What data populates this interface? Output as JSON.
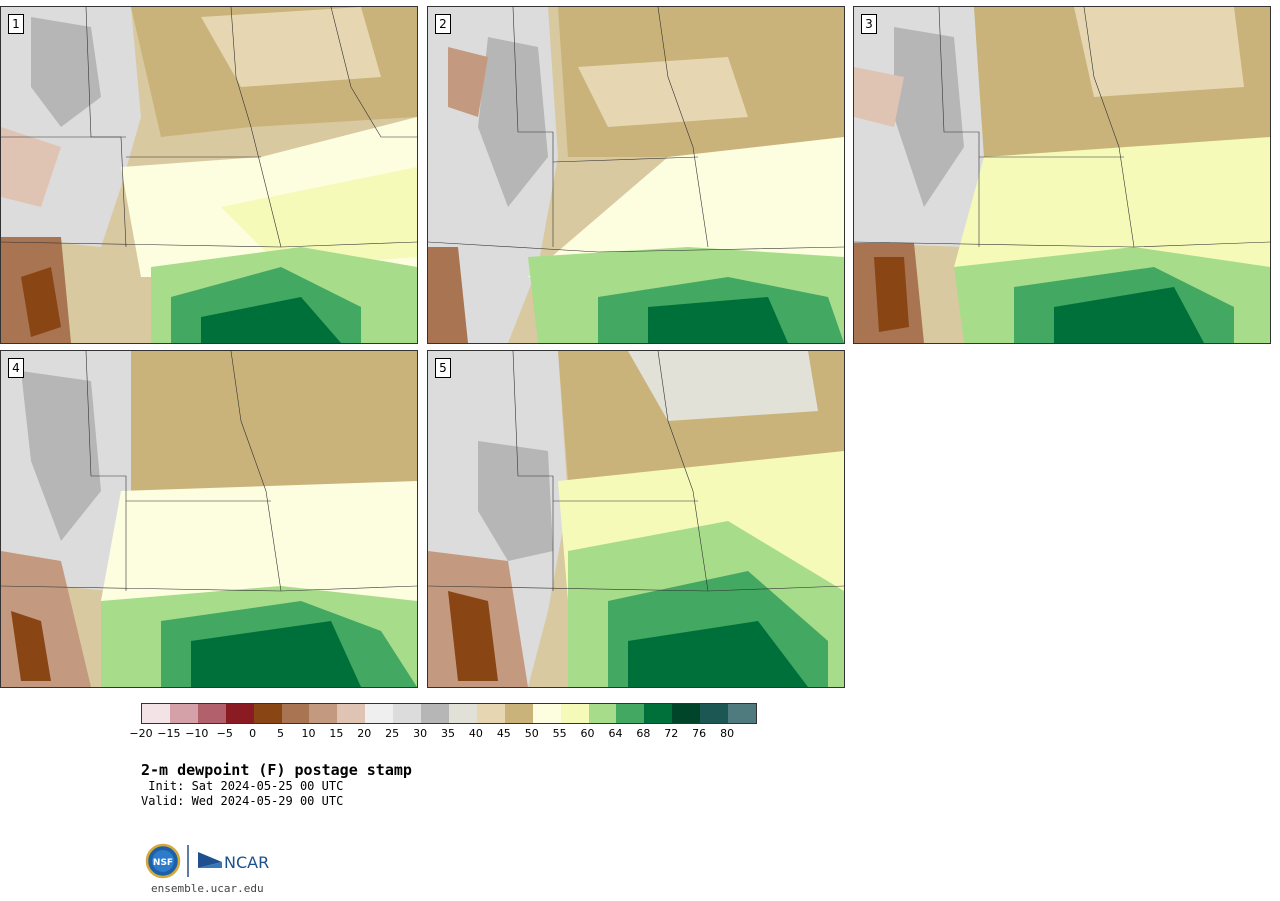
{
  "panels": [
    {
      "label": "1"
    },
    {
      "label": "2"
    },
    {
      "label": "3"
    },
    {
      "label": "4"
    },
    {
      "label": "5"
    }
  ],
  "colorbar": {
    "colors": [
      "#f4e3e6",
      "#d4a1a8",
      "#b2616c",
      "#8a1b22",
      "#8a4514",
      "#a87451",
      "#c39a7f",
      "#dfc4b3",
      "#efefef",
      "#dcdcdc",
      "#b6b6b6",
      "#e1e1d8",
      "#e6d7b2",
      "#c9b37a",
      "#fdfde0",
      "#f5fab9",
      "#a7dc8b",
      "#43a861",
      "#00703a",
      "#00442a",
      "#1c5753",
      "#4f7a7e"
    ],
    "tick_labels": [
      "−20",
      "−15",
      "−10",
      "−5",
      "0",
      "5",
      "10",
      "15",
      "20",
      "25",
      "30",
      "35",
      "40",
      "45",
      "50",
      "55",
      "60",
      "64",
      "68",
      "72",
      "76",
      "80"
    ]
  },
  "title": "2-m dewpoint (F) postage stamp",
  "init": " Init: Sat 2024-05-25 00 UTC",
  "valid": "Valid: Wed 2024-05-29 00 UTC",
  "logo": {
    "nsf": "NSF",
    "ncar": "NCAR"
  },
  "url": "ensemble.ucar.edu"
}
